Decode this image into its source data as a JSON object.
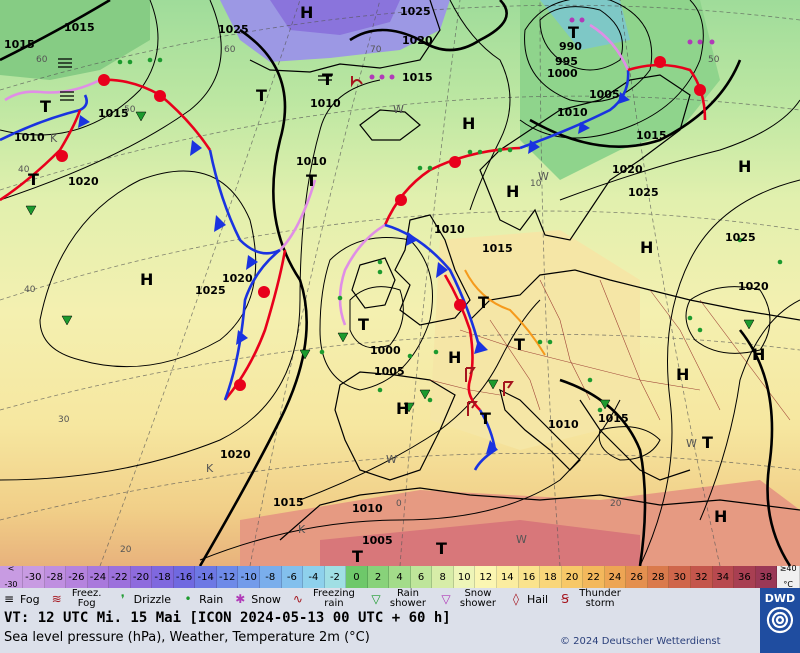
{
  "isobar_labels": [
    {
      "id": "1025a",
      "text": "1025"
    },
    {
      "id": "1015a",
      "text": "1015"
    },
    {
      "id": "1015b",
      "text": "1015"
    },
    {
      "id": "1025b",
      "text": "1025"
    },
    {
      "id": "1020a",
      "text": "1020"
    },
    {
      "id": "1015c",
      "text": "1015"
    },
    {
      "id": "1010a",
      "text": "1010"
    },
    {
      "id": "1010b",
      "text": "1010"
    },
    {
      "id": "1015d",
      "text": "1015"
    },
    {
      "id": "1020b",
      "text": "1020"
    },
    {
      "id": "1010c",
      "text": "1010"
    },
    {
      "id": "1020c",
      "text": "1020"
    },
    {
      "id": "1025c",
      "text": "1025"
    },
    {
      "id": "1010d",
      "text": "1010"
    },
    {
      "id": "1015e",
      "text": "1015"
    },
    {
      "id": "1000a",
      "text": "1000"
    },
    {
      "id": "1005a",
      "text": "1005"
    },
    {
      "id": "990",
      "text": "990"
    },
    {
      "id": "995",
      "text": "995"
    },
    {
      "id": "1000b",
      "text": "1000"
    },
    {
      "id": "1005b",
      "text": "1005"
    },
    {
      "id": "1010e",
      "text": "1010"
    },
    {
      "id": "1015f",
      "text": "1015"
    },
    {
      "id": "1020d",
      "text": "1020"
    },
    {
      "id": "1025d",
      "text": "1025"
    },
    {
      "id": "1025e",
      "text": "1025"
    },
    {
      "id": "1020e",
      "text": "1020"
    },
    {
      "id": "1015g",
      "text": "1015"
    },
    {
      "id": "1010f",
      "text": "1010"
    },
    {
      "id": "1015h",
      "text": "1015"
    },
    {
      "id": "1010g",
      "text": "1010"
    },
    {
      "id": "1005c",
      "text": "1005"
    },
    {
      "id": "1020f",
      "text": "1020"
    }
  ],
  "pressure_centers": [
    {
      "id": "h1",
      "text": "H"
    },
    {
      "id": "h2",
      "text": "H"
    },
    {
      "id": "h3",
      "text": "H"
    },
    {
      "id": "h4",
      "text": "H"
    },
    {
      "id": "h5",
      "text": "H"
    },
    {
      "id": "h6",
      "text": "H"
    },
    {
      "id": "h7",
      "text": "H"
    },
    {
      "id": "h8",
      "text": "H"
    },
    {
      "id": "h9",
      "text": "H"
    },
    {
      "id": "h10",
      "text": "H"
    },
    {
      "id": "h11",
      "text": "H"
    },
    {
      "id": "t1",
      "text": "T"
    },
    {
      "id": "t2",
      "text": "T"
    },
    {
      "id": "t3",
      "text": "T"
    },
    {
      "id": "t4",
      "text": "T"
    },
    {
      "id": "t5",
      "text": "T"
    },
    {
      "id": "t6",
      "text": "T"
    },
    {
      "id": "t7",
      "text": "T"
    },
    {
      "id": "t8",
      "text": "T"
    },
    {
      "id": "t9",
      "text": "T"
    },
    {
      "id": "t10",
      "text": "T"
    },
    {
      "id": "t11",
      "text": "T"
    },
    {
      "id": "t12",
      "text": "T"
    },
    {
      "id": "t13",
      "text": "T"
    },
    {
      "id": "k1",
      "text": "K"
    },
    {
      "id": "k2",
      "text": "K"
    },
    {
      "id": "k3",
      "text": "K"
    },
    {
      "id": "w1",
      "text": "W"
    },
    {
      "id": "w2",
      "text": "W"
    },
    {
      "id": "w3",
      "text": "W"
    },
    {
      "id": "w4",
      "text": "W"
    },
    {
      "id": "w5",
      "text": "W"
    }
  ],
  "grid_labels": [
    {
      "id": "g60a",
      "text": "60"
    },
    {
      "id": "g60b",
      "text": "60"
    },
    {
      "id": "g50a",
      "text": "50"
    },
    {
      "id": "g50b",
      "text": "50"
    },
    {
      "id": "g40a",
      "text": "40"
    },
    {
      "id": "g40b",
      "text": "40"
    },
    {
      "id": "g30",
      "text": "30"
    },
    {
      "id": "g20a",
      "text": "20"
    },
    {
      "id": "g20b",
      "text": "20"
    },
    {
      "id": "g0",
      "text": "0"
    },
    {
      "id": "g10",
      "text": "10"
    },
    {
      "id": "g70",
      "text": "70"
    }
  ],
  "scale": {
    "first_label_top": "<",
    "first_label_bottom": "-30",
    "values": [
      "-30",
      "-28",
      "-26",
      "-24",
      "-22",
      "-20",
      "-18",
      "-16",
      "-14",
      "-12",
      "-10",
      "-8",
      "-6",
      "-4",
      "-2",
      "0",
      "2",
      "4",
      "6",
      "8",
      "10",
      "12",
      "14",
      "16",
      "18",
      "20",
      "22",
      "24",
      "26",
      "28",
      "30",
      "32",
      "34",
      "36",
      "38"
    ],
    "last_label_top": "≥40",
    "last_label_bottom": "°C",
    "colors": [
      "#c89be2",
      "#bf8fe0",
      "#b583de",
      "#a979dc",
      "#9c71dc",
      "#8e6bdd",
      "#7f68de",
      "#7069e0",
      "#6d78e4",
      "#6e8ae8",
      "#739bea",
      "#7aaeec",
      "#83c0ed",
      "#8ed1ec",
      "#a0dfe4",
      "#6ec86a",
      "#88d27a",
      "#a3dc8a",
      "#bee59a",
      "#d7eda8",
      "#eef5b8",
      "#fbf6b2",
      "#fbeda0",
      "#fae38d",
      "#f9d67a",
      "#f7c868",
      "#f3b85c",
      "#eda554",
      "#e4904f",
      "#da7a4c",
      "#cf664b",
      "#c4564c",
      "#b8494f",
      "#a83f52",
      "#9a3856",
      "#8d3258"
    ]
  },
  "legend": [
    {
      "id": "fog",
      "icon": "fog-icon",
      "label": "Fog"
    },
    {
      "id": "freezing-fog",
      "icon": "freezing-fog-icon",
      "label": "Freez. Fog"
    },
    {
      "id": "drizzle",
      "icon": "drizzle-icon",
      "label": "Drizzle"
    },
    {
      "id": "rain",
      "icon": "rain-icon",
      "label": "Rain"
    },
    {
      "id": "snow",
      "icon": "snow-icon",
      "label": "Snow"
    },
    {
      "id": "freezing-rain",
      "icon": "freezing-rain-icon",
      "label": "Freezing rain"
    },
    {
      "id": "rain-shower",
      "icon": "rain-shower-icon",
      "label": "Rain shower"
    },
    {
      "id": "snow-shower",
      "icon": "snow-shower-icon",
      "label": "Snow shower"
    },
    {
      "id": "hail",
      "icon": "hail-icon",
      "label": "Hail"
    },
    {
      "id": "thunderstorm",
      "icon": "thunderstorm-icon",
      "label": "Thunder storm"
    }
  ],
  "info": {
    "valid_time": "VT: 12 UTC Mi.  15 Mai [ICON 2024-05-13  00 UTC + 60 h]",
    "description": "Sea level pressure (hPa), Weather, Temperature 2m (°C)",
    "copyright": "© 2024 Deutscher Wetterdienst",
    "logo_text": "DWD"
  },
  "colors": {
    "warm_front": "#e8001c",
    "cold_front": "#1a33e0",
    "occlusion": "#e08ee6",
    "trough": "#f59a1c",
    "isobar": "#000000",
    "land_border": "#000000"
  }
}
